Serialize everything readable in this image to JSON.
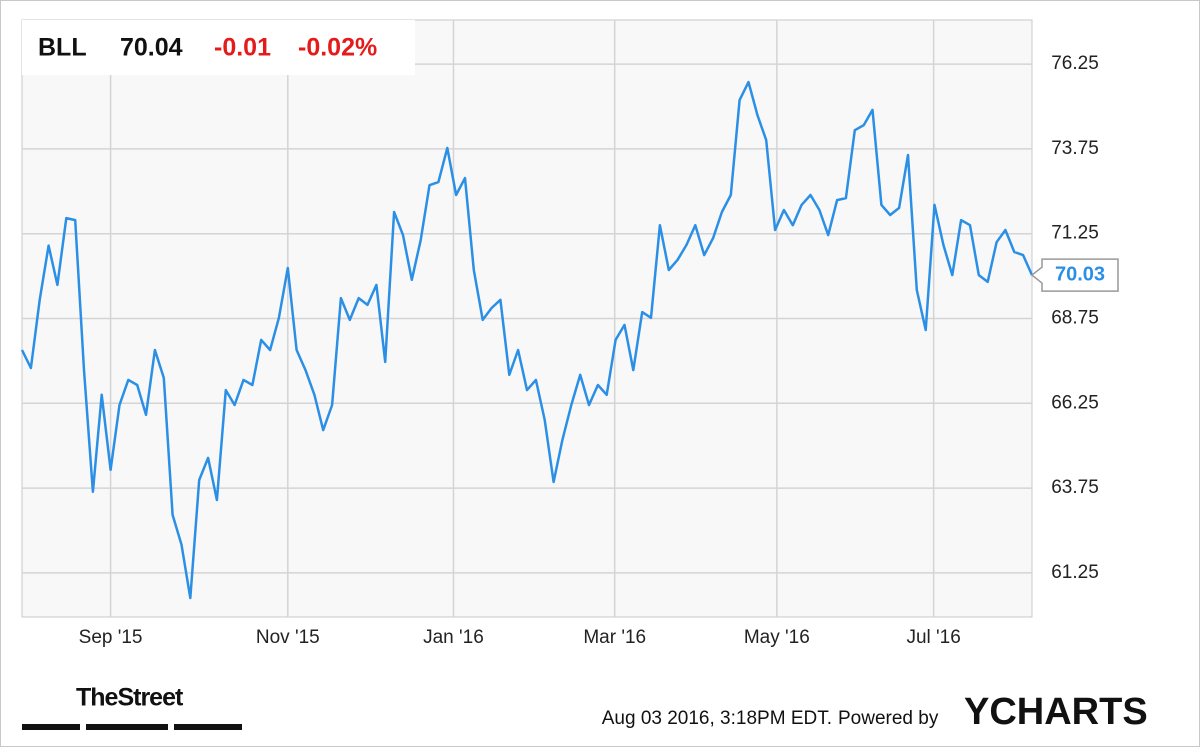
{
  "chart_data": {
    "type": "line",
    "header": {
      "ticker": "BLL",
      "price": "70.04",
      "change": "-0.01",
      "change_pct": "-0.02%"
    },
    "series": [
      {
        "name": "BLL",
        "color": "#2b8fe6",
        "values": [
          67.82,
          67.29,
          69.3,
          70.9,
          69.74,
          71.71,
          71.65,
          67.23,
          63.64,
          66.5,
          64.29,
          66.2,
          66.94,
          66.79,
          65.91,
          67.82,
          67.0,
          62.96,
          62.08,
          60.51,
          63.99,
          64.64,
          63.4,
          66.64,
          66.2,
          66.94,
          66.79,
          68.12,
          67.82,
          68.77,
          70.24,
          67.82,
          67.23,
          66.5,
          65.46,
          66.2,
          69.35,
          68.71,
          69.35,
          69.15,
          69.74,
          67.47,
          71.89,
          71.21,
          69.89,
          71.06,
          72.68,
          72.77,
          73.78,
          72.39,
          72.89,
          70.18,
          68.71,
          69.06,
          69.3,
          67.09,
          67.82,
          66.64,
          66.94,
          65.76,
          63.93,
          65.17,
          66.2,
          67.09,
          66.2,
          66.79,
          66.5,
          68.12,
          68.56,
          67.23,
          68.94,
          68.77,
          71.5,
          70.18,
          70.48,
          70.92,
          71.5,
          70.62,
          71.12,
          71.89,
          72.39,
          75.19,
          75.72,
          74.75,
          74.01,
          71.36,
          71.95,
          71.5,
          72.1,
          72.39,
          71.95,
          71.21,
          72.24,
          72.3,
          74.3,
          74.45,
          74.9,
          72.1,
          71.8,
          72.01,
          73.57,
          69.59,
          68.41,
          72.1,
          70.92,
          70.03,
          71.65,
          71.5,
          70.03,
          69.83,
          71.0,
          71.36,
          70.71,
          70.62,
          70.03
        ]
      }
    ],
    "xlim": [
      0,
      114
    ],
    "xticks": [
      {
        "value": 10,
        "label": "Sep '15"
      },
      {
        "value": 30,
        "label": "Nov '15"
      },
      {
        "value": 48.7,
        "label": "Jan '16"
      },
      {
        "value": 66.9,
        "label": "Mar '16"
      },
      {
        "value": 85.2,
        "label": "May '16"
      },
      {
        "value": 102.9,
        "label": "Jul '16"
      }
    ],
    "ylim": [
      59.95,
      77.55
    ],
    "yticks": [
      61.25,
      63.75,
      66.25,
      68.75,
      71.25,
      73.75,
      76.25
    ],
    "grid": true,
    "footer": {
      "source_logo": "TheStreet",
      "timestamp": "Aug 03 2016, 3:18PM EDT.",
      "powered_by": "Powered by",
      "brand": "YCHARTS"
    }
  }
}
